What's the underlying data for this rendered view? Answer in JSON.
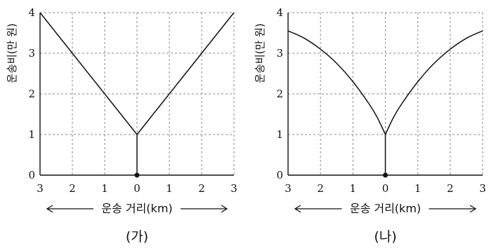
{
  "chart_data": [
    {
      "type": "line",
      "panel_label": "(가)",
      "xlabel": "운송 거리(km)",
      "ylabel": "운송비(만 원)",
      "x_ticks": [
        "3",
        "2",
        "1",
        "0",
        "1",
        "2",
        "3"
      ],
      "y_ticks": [
        "0",
        "1",
        "2",
        "3",
        "4"
      ],
      "xlim": [
        -3,
        3
      ],
      "ylim": [
        0,
        4
      ],
      "grid": true,
      "series": [
        {
          "x": [
            -3,
            -2,
            -1,
            0,
            1,
            2,
            3
          ],
          "y": [
            4,
            3,
            2,
            1,
            2,
            3,
            4
          ]
        }
      ],
      "origin_point": {
        "x": 0,
        "y": 0
      },
      "stem": {
        "x": 0,
        "y_from": 0,
        "y_to": 1
      }
    },
    {
      "type": "line",
      "panel_label": "(나)",
      "xlabel": "운송 거리(km)",
      "ylabel": "운송비(만 원)",
      "x_ticks": [
        "3",
        "2",
        "1",
        "0",
        "1",
        "2",
        "3"
      ],
      "y_ticks": [
        "0",
        "1",
        "2",
        "3",
        "4"
      ],
      "xlim": [
        -3,
        3
      ],
      "ylim": [
        0,
        4
      ],
      "grid": true,
      "series": [
        {
          "x": [
            -3,
            -2.5,
            -2,
            -1.5,
            -1,
            -0.5,
            -0.25,
            0,
            0.25,
            0.5,
            1,
            1.5,
            2,
            2.5,
            3
          ],
          "y": [
            3.55,
            3.37,
            3.1,
            2.75,
            2.3,
            1.75,
            1.42,
            1.0,
            1.42,
            1.75,
            2.3,
            2.75,
            3.1,
            3.37,
            3.55
          ]
        }
      ],
      "origin_point": {
        "x": 0,
        "y": 0
      },
      "stem": {
        "x": 0,
        "y_from": 0,
        "y_to": 1
      }
    }
  ]
}
